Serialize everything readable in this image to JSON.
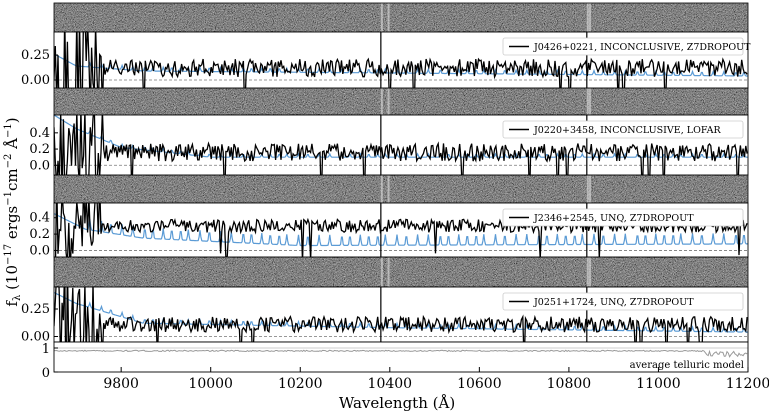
{
  "chart_data": {
    "type": "line",
    "xlabel": "Wavelength (Å)",
    "ylabel": "f_λ (10^-17 ergs^-1 cm^-2 Å^-1)",
    "xlim": [
      9650,
      11200
    ],
    "xticks": [
      "9800",
      "10000",
      "10200",
      "10400",
      "10600",
      "10800",
      "11000",
      "11200"
    ],
    "panels": [
      {
        "label": "J0426+0221, INCONCLUSIVE, Z7DROPOUT",
        "ylim": [
          -0.08,
          0.48
        ],
        "yticks": [
          "0.00",
          "0.25"
        ],
        "flux_level": 0.12,
        "flux_noise": 0.09,
        "model_continuum": [
          [
            9650,
            0.26
          ],
          [
            9700,
            0.14
          ],
          [
            9850,
            0.09
          ],
          [
            10400,
            0.07
          ],
          [
            11200,
            0.04
          ]
        ],
        "model_line_height": 0.04
      },
      {
        "label": "J0220+3458, INCONCLUSIVE, LOFAR",
        "ylim": [
          -0.12,
          0.62
        ],
        "yticks": [
          "0.0",
          "0.2",
          "0.4"
        ],
        "flux_level": 0.16,
        "flux_noise": 0.11,
        "model_continuum": [
          [
            9650,
            0.62
          ],
          [
            9700,
            0.45
          ],
          [
            9800,
            0.22
          ],
          [
            10000,
            0.1
          ],
          [
            11200,
            0.1
          ]
        ],
        "model_line_height": 0.04
      },
      {
        "label": "J2346+2545, UNQ, Z7DROPOUT",
        "ylim": [
          -0.08,
          0.58
        ],
        "yticks": [
          "0.0",
          "0.2",
          "0.4"
        ],
        "flux_level": 0.3,
        "flux_noise": 0.08,
        "model_continuum": [
          [
            9650,
            0.45
          ],
          [
            9720,
            0.26
          ],
          [
            9850,
            0.15
          ],
          [
            10200,
            0.06
          ],
          [
            11200,
            0.08
          ]
        ],
        "model_line_height": 0.13
      },
      {
        "label": "J0251+1724, UNQ, Z7DROPOUT",
        "ylim": [
          -0.05,
          0.45
        ],
        "yticks": [
          "0.00",
          "0.25"
        ],
        "flux_level": 0.11,
        "flux_noise": 0.07,
        "model_continuum": [
          [
            9650,
            0.4
          ],
          [
            9700,
            0.3
          ],
          [
            9850,
            0.12
          ],
          [
            10400,
            0.08
          ],
          [
            11200,
            0.04
          ]
        ],
        "model_line_height": 0.04
      }
    ],
    "telluric": {
      "label": "average telluric model",
      "ylim": [
        0,
        1.25
      ],
      "yticks": [
        "0",
        "1"
      ],
      "level": 0.88
    }
  }
}
